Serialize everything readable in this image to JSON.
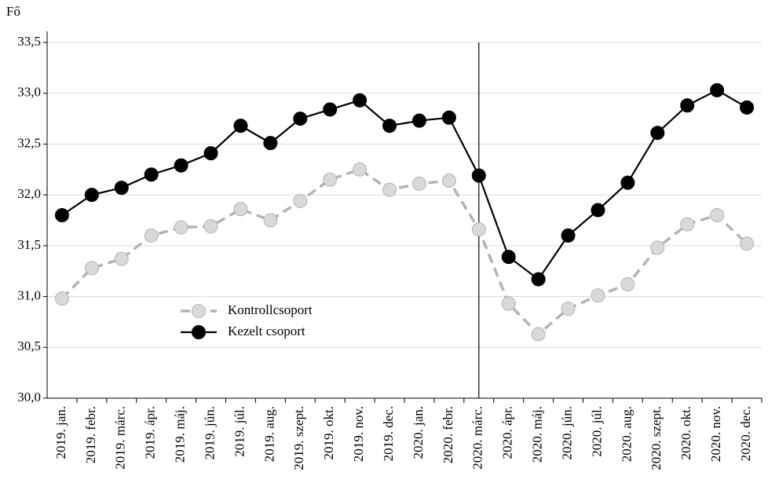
{
  "chart_data": {
    "type": "line",
    "y_label": "Fő",
    "categories": [
      "2019. jan.",
      "2019. febr.",
      "2019. márc.",
      "2019. ápr.",
      "2019. máj.",
      "2019. jún.",
      "2019. júl.",
      "2019. aug.",
      "2019. szept.",
      "2019. okt.",
      "2019. nov.",
      "2019. dec.",
      "2020. jan.",
      "2020. febr.",
      "2020. márc.",
      "2020. ápr.",
      "2020. máj.",
      "2020. jún.",
      "2020. júl.",
      "2020. aug.",
      "2020. szept.",
      "2020. okt.",
      "2020. nov.",
      "2020. dec."
    ],
    "series": [
      {
        "name": "Kontrollcsoport",
        "color": "#b3b3b3",
        "marker_fill": "#d9d9d9",
        "dashed": true,
        "values": [
          30.98,
          31.28,
          31.37,
          31.6,
          31.68,
          31.69,
          31.86,
          31.75,
          31.94,
          32.15,
          32.25,
          32.05,
          32.11,
          32.14,
          31.66,
          30.93,
          30.63,
          30.88,
          31.01,
          31.12,
          31.48,
          31.71,
          31.8,
          31.52
        ]
      },
      {
        "name": "Kezelt csoport",
        "color": "#000000",
        "marker_fill": "#000000",
        "dashed": false,
        "values": [
          31.8,
          32.0,
          32.07,
          32.2,
          32.29,
          32.41,
          32.68,
          32.51,
          32.75,
          32.84,
          32.93,
          32.68,
          32.73,
          32.76,
          32.19,
          31.39,
          31.17,
          31.6,
          31.85,
          32.12,
          32.61,
          32.88,
          33.03,
          32.86
        ]
      }
    ],
    "vline": "2020. márc.",
    "ylim": [
      30.0,
      33.5
    ],
    "yticks": [
      {
        "value": 30.0,
        "label": "30,0"
      },
      {
        "value": 30.5,
        "label": "30,5"
      },
      {
        "value": 31.0,
        "label": "31,0"
      },
      {
        "value": 31.5,
        "label": "31,5"
      },
      {
        "value": 32.0,
        "label": "32,0"
      },
      {
        "value": 32.5,
        "label": "32,5"
      },
      {
        "value": 33.0,
        "label": "33,0"
      },
      {
        "value": 33.5,
        "label": "33,5"
      }
    ],
    "grid": true
  }
}
